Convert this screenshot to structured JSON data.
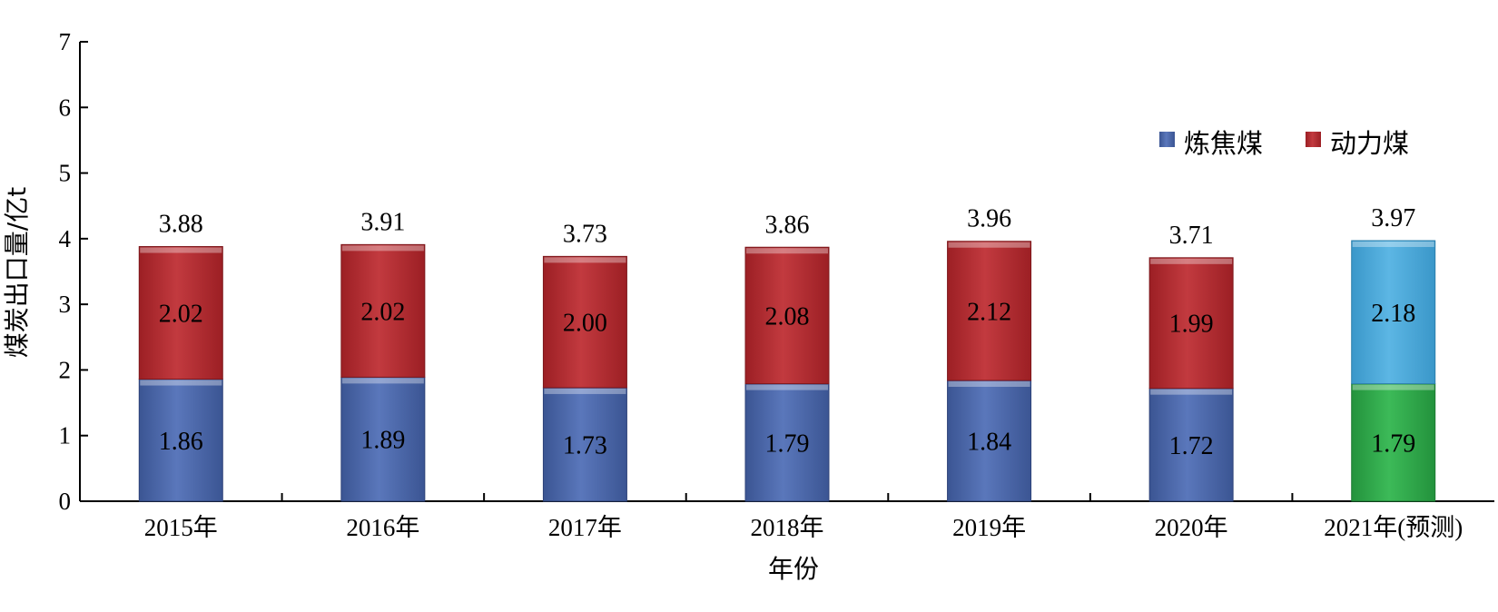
{
  "chart_data": {
    "type": "bar",
    "stacked": true,
    "categories": [
      "2015年",
      "2016年",
      "2017年",
      "2018年",
      "2019年",
      "2020年",
      "2021年(预测)"
    ],
    "series": [
      {
        "name": "炼焦煤",
        "values": [
          1.86,
          1.89,
          1.73,
          1.79,
          1.84,
          1.72,
          1.79
        ],
        "labels": [
          "1.86",
          "1.89",
          "1.73",
          "1.79",
          "1.84",
          "1.72",
          "1.79"
        ],
        "color": "#4a65a6",
        "forecast_color": "#2ea44a"
      },
      {
        "name": "动力煤",
        "values": [
          2.02,
          2.02,
          2.0,
          2.08,
          2.12,
          1.99,
          2.18
        ],
        "labels": [
          "2.02",
          "2.02",
          "2.00",
          "2.08",
          "2.12",
          "1.99",
          "2.18"
        ],
        "color": "#b3282d",
        "forecast_color": "#45a6d8"
      }
    ],
    "totals": [
      3.88,
      3.91,
      3.73,
      3.86,
      3.96,
      3.71,
      3.97
    ],
    "total_labels": [
      "3.88",
      "3.91",
      "3.73",
      "3.86",
      "3.96",
      "3.71",
      "3.97"
    ],
    "xlabel": "年份",
    "ylabel": "煤炭出口量/亿t",
    "ylim": [
      0,
      7
    ],
    "yticks": [
      0,
      1,
      2,
      3,
      4,
      5,
      6,
      7
    ],
    "ytick_labels": [
      "0",
      "1",
      "2",
      "3",
      "4",
      "5",
      "6",
      "7"
    ],
    "grid": false,
    "legend_position": "top-right"
  }
}
